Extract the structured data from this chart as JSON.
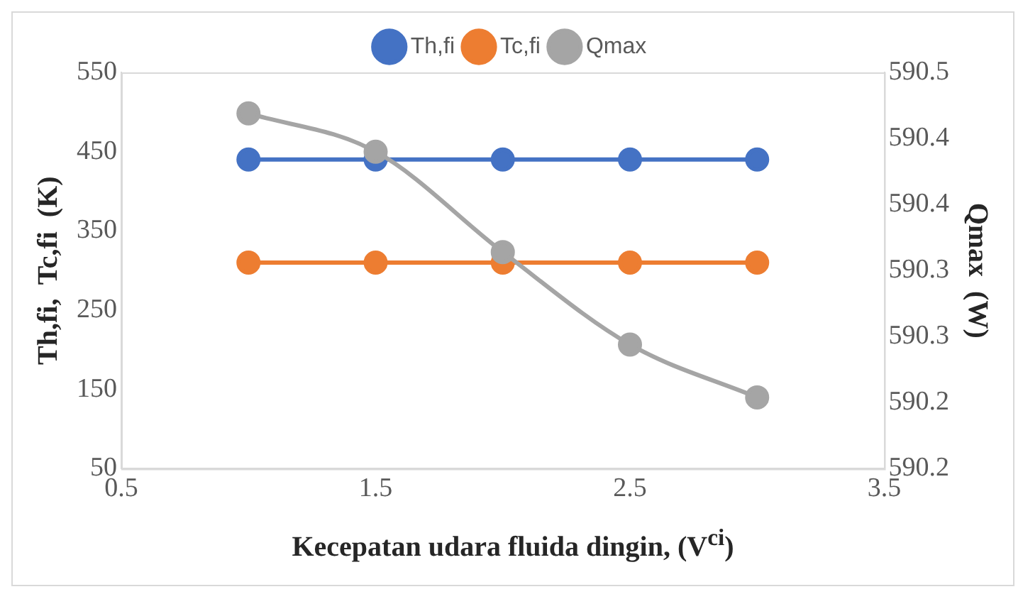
{
  "chart_data": {
    "type": "line",
    "xlabel": "Kecepatan  udara  fluida  dingin,  (V$^{ci}$)",
    "ylabel": "Th,fi,  Tc,fi  (K)",
    "y2label": "Qmax  (W)",
    "x": [
      1,
      1.5,
      2,
      2.5,
      3
    ],
    "series": [
      {
        "name": "Th,fi",
        "color": "#4472c4",
        "values": [
          440,
          440,
          440,
          440,
          440
        ]
      },
      {
        "name": "Tc,fi",
        "color": "#ed7d31",
        "values": [
          310,
          310,
          310,
          310,
          310
        ]
      },
      {
        "name": "Qmax",
        "color": "#a5a5a5",
        "axis": "y2",
        "values": [
          590.469,
          590.44,
          590.364,
          590.294,
          590.254
        ]
      }
    ],
    "xlim": [
      0.5,
      3.5
    ],
    "xticks": [
      0.5,
      1.5,
      2.5,
      3.5
    ],
    "ylim": [
      50,
      550
    ],
    "yticks": [
      50,
      150,
      250,
      350,
      450,
      550
    ],
    "y2lim": [
      590.2,
      590.5
    ],
    "y2ticks": [
      {
        "value": 590.2,
        "label": "590.2"
      },
      {
        "value": 590.25,
        "label": "590.2"
      },
      {
        "value": 590.3,
        "label": "590.3"
      },
      {
        "value": 590.35,
        "label": "590.3"
      },
      {
        "value": 590.4,
        "label": "590.4"
      },
      {
        "value": 590.45,
        "label": "590.4"
      },
      {
        "value": 590.5,
        "label": "590.5"
      }
    ],
    "legend": "top",
    "marker": "circle",
    "line_style": "solid",
    "grid": false
  }
}
